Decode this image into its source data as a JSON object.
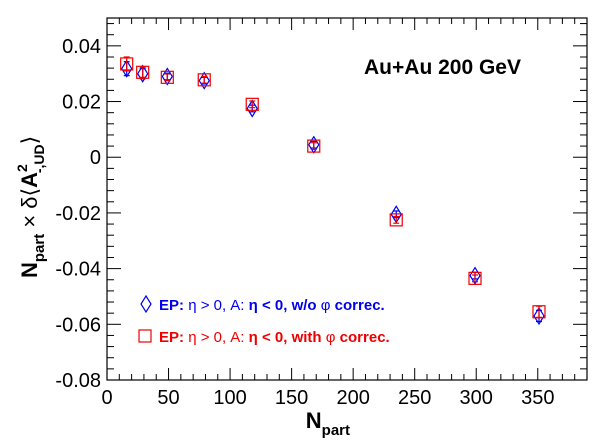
{
  "chart_data": {
    "type": "scatter",
    "annotation": "Au+Au 200 GeV",
    "xlabel_main": "N",
    "xlabel_sub": "part",
    "ylabel": "N_part × δ⟨A²_{-,UD}⟩",
    "ylabel_parts": {
      "n": "N",
      "n_sub": "part",
      "times": " × δ",
      "open": "⟨",
      "a": "A",
      "a_sup": "2",
      "a_sub": "-,UD",
      "close": "⟩"
    },
    "xlim": [
      0,
      390
    ],
    "ylim": [
      -0.08,
      0.05
    ],
    "xticks": [
      0,
      50,
      100,
      150,
      200,
      250,
      300,
      350
    ],
    "yticks": [
      -0.08,
      -0.06,
      -0.04,
      -0.02,
      0,
      0.02,
      0.04
    ],
    "ytick_labels": [
      "-0.08",
      "-0.06",
      "-0.04",
      "-0.02",
      "0",
      "0.02",
      "0.04"
    ],
    "xtick_labels": [
      "0",
      "50",
      "100",
      "150",
      "200",
      "250",
      "300",
      "350"
    ],
    "series": [
      {
        "label": "EP: η > 0, A: η < 0, w/o φ correc.",
        "legend_prefix": "EP:",
        "legend_body": "η > 0, A:",
        "legend_body2": "η < 0, w/o",
        "legend_phi": "φ",
        "legend_suffix": "correc.",
        "marker": "diamond",
        "color": "#0000ee",
        "points": [
          {
            "x": 16,
            "y": 0.0318,
            "err": 0.0025
          },
          {
            "x": 29,
            "y": 0.03,
            "err": 0.0018
          },
          {
            "x": 49,
            "y": 0.029,
            "err": 0.0012
          },
          {
            "x": 79,
            "y": 0.0275,
            "err": 0.0012
          },
          {
            "x": 118,
            "y": 0.0175,
            "err": 0.0012
          },
          {
            "x": 168,
            "y": 0.0045,
            "err": 0.0012
          },
          {
            "x": 235,
            "y": -0.0205,
            "err": 0.0012
          },
          {
            "x": 299,
            "y": -0.0425,
            "err": 0.0012
          },
          {
            "x": 351,
            "y": -0.057,
            "err": 0.002
          }
        ]
      },
      {
        "label": "EP: η > 0, A: η < 0, with φ correc.",
        "legend_prefix": "EP:",
        "legend_body": "η > 0, A:",
        "legend_body2": "η < 0, with",
        "legend_phi": "φ",
        "legend_suffix": "correc.",
        "marker": "square",
        "color": "#ee0000",
        "points": [
          {
            "x": 16,
            "y": 0.0335,
            "err": 0.0025
          },
          {
            "x": 29,
            "y": 0.0305,
            "err": 0.0018
          },
          {
            "x": 49,
            "y": 0.0287,
            "err": 0.0012
          },
          {
            "x": 79,
            "y": 0.0278,
            "err": 0.0012
          },
          {
            "x": 118,
            "y": 0.019,
            "err": 0.0012
          },
          {
            "x": 168,
            "y": 0.004,
            "err": 0.0012
          },
          {
            "x": 235,
            "y": -0.0225,
            "err": 0.0012
          },
          {
            "x": 299,
            "y": -0.0435,
            "err": 0.0012
          },
          {
            "x": 351,
            "y": -0.0555,
            "err": 0.002
          }
        ]
      }
    ],
    "legend_position": "bottom-left",
    "grid": false
  }
}
